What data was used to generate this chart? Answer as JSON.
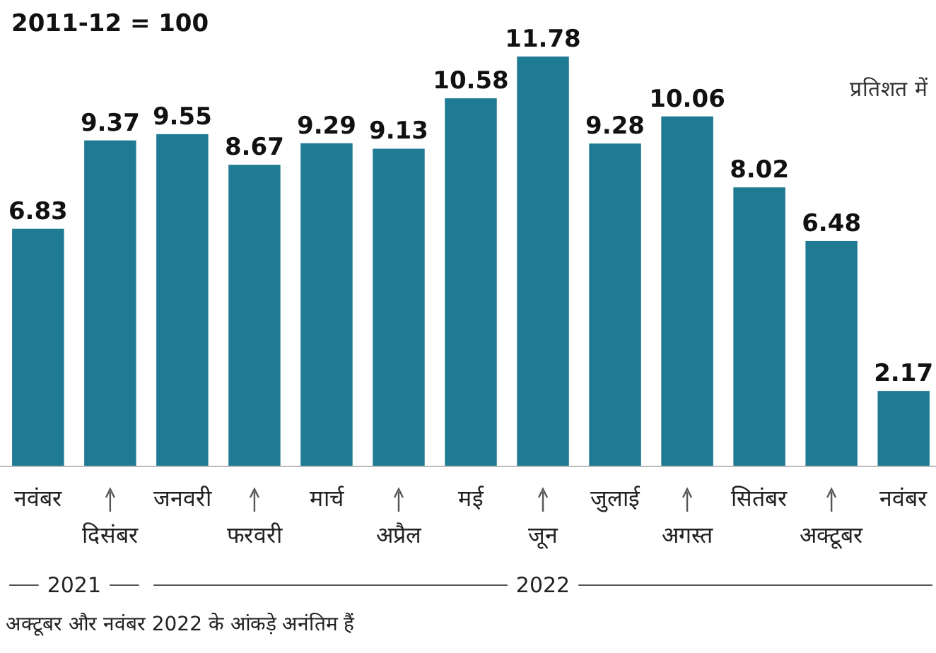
{
  "chart_data": {
    "type": "bar",
    "title": "2011-12 = 100",
    "subtitle": "प्रतिशत में",
    "categories": [
      "नवंबर",
      "दिसंबर",
      "जनवरी",
      "फरवरी",
      "मार्च",
      "अप्रैल",
      "मई",
      "जून",
      "जुलाई",
      "अगस्त",
      "सितंबर",
      "अक्टूबर",
      "नवंबर"
    ],
    "values": [
      6.83,
      9.37,
      9.55,
      8.67,
      9.29,
      9.13,
      10.58,
      11.78,
      9.28,
      10.06,
      8.02,
      6.48,
      2.17
    ],
    "color": "#1f7a93",
    "data_labels": true,
    "tick_labels": "x",
    "annotations": [
      "2021",
      "2022",
      "अक्टूबर और नवंबर 2022 के आंकड़े अनंतिम हैं"
    ]
  }
}
